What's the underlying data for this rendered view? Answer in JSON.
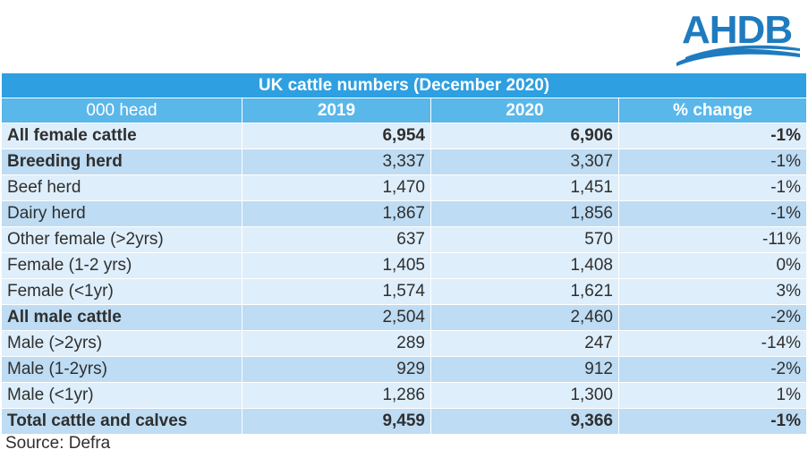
{
  "logo": {
    "text": "AHDB"
  },
  "table": {
    "title": "UK cattle numbers (December 2020)",
    "headers": [
      "000 head",
      "2019",
      "2020",
      "% change"
    ],
    "rows": [
      {
        "label": "All female cattle",
        "v2019": "6,954",
        "v2020": "6,906",
        "change": "-1%"
      },
      {
        "label": "Breeding herd",
        "v2019": "3,337",
        "v2020": "3,307",
        "change": "-1%"
      },
      {
        "label": "Beef herd",
        "v2019": "1,470",
        "v2020": "1,451",
        "change": "-1%"
      },
      {
        "label": "Dairy herd",
        "v2019": "1,867",
        "v2020": "1,856",
        "change": "-1%"
      },
      {
        "label": "Other female (>2yrs)",
        "v2019": "637",
        "v2020": "570",
        "change": "-11%"
      },
      {
        "label": "Female (1-2 yrs)",
        "v2019": "1,405",
        "v2020": "1,408",
        "change": "0%"
      },
      {
        "label": "Female (<1yr)",
        "v2019": "1,574",
        "v2020": "1,621",
        "change": "3%"
      },
      {
        "label": "All male cattle",
        "v2019": "2,504",
        "v2020": "2,460",
        "change": "-2%"
      },
      {
        "label": "Male (>2yrs)",
        "v2019": "289",
        "v2020": "247",
        "change": "-14%"
      },
      {
        "label": "Male (1-2yrs)",
        "v2019": "929",
        "v2020": "912",
        "change": "-2%"
      },
      {
        "label": "Male (<1yr)",
        "v2019": "1,286",
        "v2020": "1,300",
        "change": "1%"
      },
      {
        "label": "Total cattle and calves",
        "v2019": "9,459",
        "v2020": "9,366",
        "change": "-1%"
      }
    ]
  },
  "source": "Source: Defra",
  "colors": {
    "title_bg": "#2e9fe1",
    "header_bg": "#5ab7ea",
    "row_light": "#deeefb",
    "row_dark": "#bedcf3",
    "logo_blue": "#1f7bbf"
  }
}
